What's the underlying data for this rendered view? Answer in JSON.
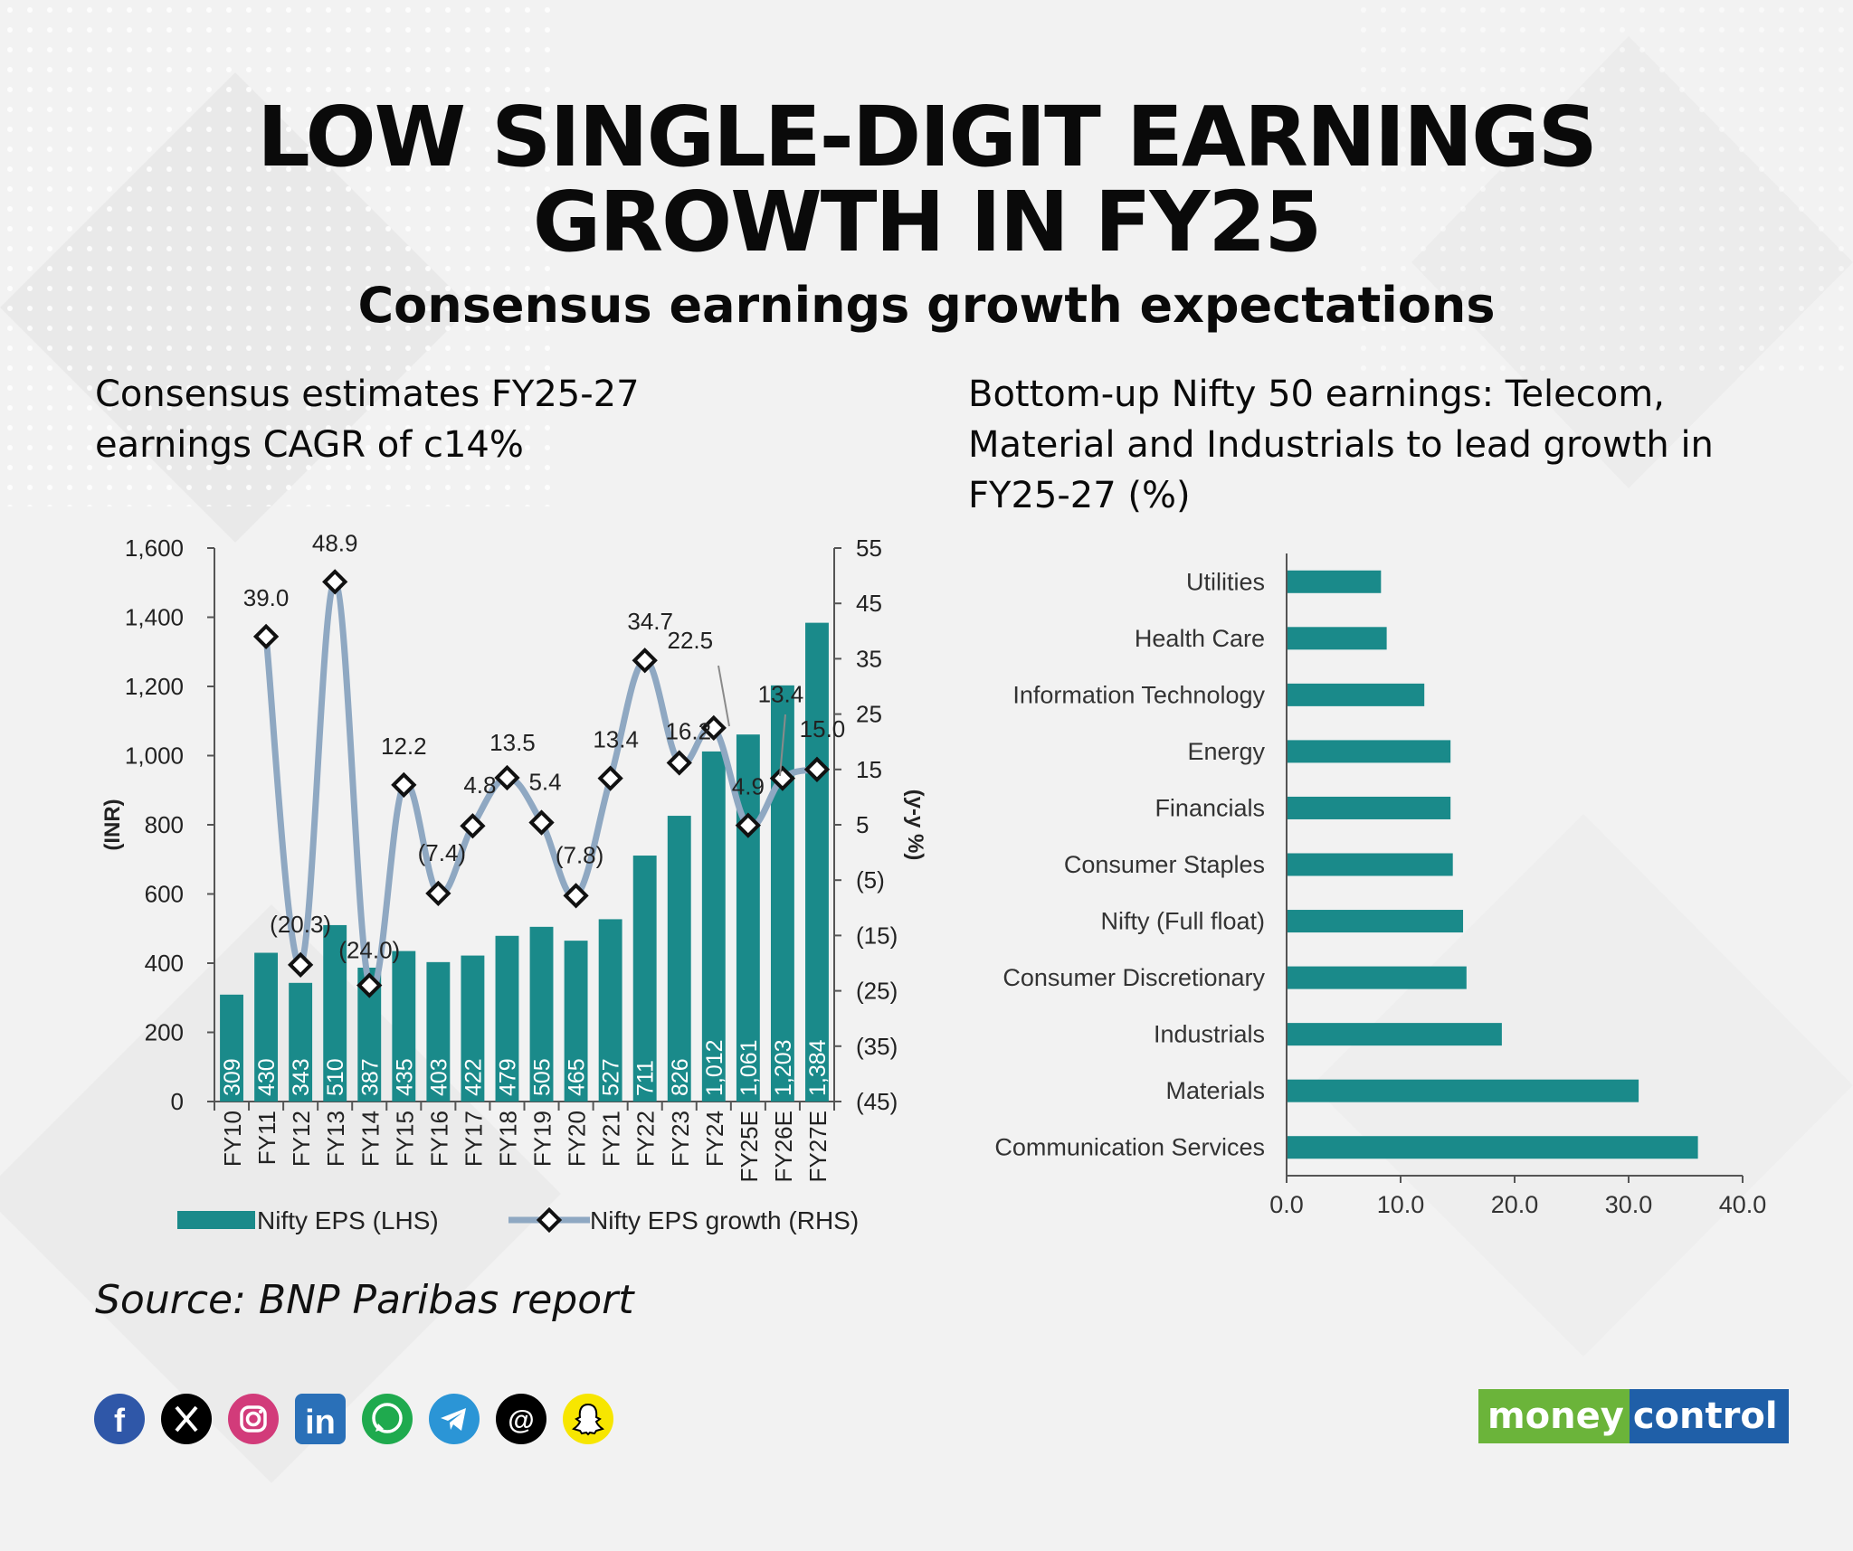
{
  "header": {
    "title_line1": "LOW SINGLE-DIGIT EARNINGS",
    "title_line2": "GROWTH IN FY25",
    "subtitle": "Consensus earnings growth expectations"
  },
  "left_panel": {
    "title": "Consensus estimates FY25-27 earnings CAGR of c14%"
  },
  "right_panel": {
    "title": "Bottom-up Nifty 50 earnings: Telecom, Material and Industrials to lead growth in FY25-27 (%)"
  },
  "source": "Source: BNP Paribas report",
  "social_icons": [
    "facebook-icon",
    "x-icon",
    "instagram-icon",
    "linkedin-icon",
    "whatsapp-icon",
    "telegram-icon",
    "threads-icon",
    "snapchat-icon"
  ],
  "logo": {
    "part1": "money",
    "part2": "control",
    "color1": "#6bb43a",
    "color2": "#1f5fa8"
  },
  "colors": {
    "bar": "#1a8a8a",
    "line": "#8fa8c2",
    "marker_edge": "#111111"
  },
  "chart_data": [
    {
      "type": "bar",
      "categories": [
        "FY10",
        "FY11",
        "FY12",
        "FY13",
        "FY14",
        "FY15",
        "FY16",
        "FY17",
        "FY18",
        "FY19",
        "FY20",
        "FY21",
        "FY22",
        "FY23",
        "FY24",
        "FY25E",
        "FY26E",
        "FY27E"
      ],
      "series": [
        {
          "name": "Nifty EPS (LHS)",
          "axis": "left",
          "type": "bar",
          "values": [
            309,
            430,
            343,
            510,
            387,
            435,
            403,
            422,
            479,
            505,
            465,
            527,
            711,
            826,
            1012,
            1061,
            1203,
            1384
          ],
          "labels": [
            "309",
            "430",
            "343",
            "510",
            "387",
            "435",
            "403",
            "422",
            "479",
            "505",
            "465",
            "527",
            "711",
            "826",
            "1,012",
            "1,061",
            "1,203",
            "1,384"
          ]
        },
        {
          "name": "Nifty EPS growth (RHS)",
          "axis": "right",
          "type": "line",
          "values": [
            null,
            39.0,
            -20.3,
            48.9,
            -24.0,
            12.2,
            -7.4,
            4.8,
            13.5,
            5.4,
            -7.8,
            13.4,
            34.7,
            16.2,
            22.5,
            4.9,
            13.4,
            15.0
          ],
          "labels": [
            "",
            "39.0",
            "(20.3)",
            "48.9",
            "(24.0)",
            "12.2",
            "(7.4)",
            "4.8",
            "13.5",
            "5.4",
            "(7.8)",
            "13.4",
            "34.7",
            "16.2",
            "22.5",
            "4.9",
            "13.4",
            "15.0"
          ]
        }
      ],
      "ylabel": "(INR)",
      "y2label": "(y-y %)",
      "ylim": [
        0,
        1600
      ],
      "y2lim": [
        -45,
        55
      ],
      "yticks": [
        "0",
        "200",
        "400",
        "600",
        "800",
        "1,000",
        "1,200",
        "1,400",
        "1,600"
      ],
      "y2ticks": [
        "(45)",
        "(35)",
        "(25)",
        "(15)",
        "(5)",
        "5",
        "15",
        "25",
        "35",
        "45",
        "55"
      ],
      "legend": "bottom"
    },
    {
      "type": "bar",
      "orientation": "horizontal",
      "categories": [
        "Utilities",
        "Health Care",
        "Information Technology",
        "Energy",
        "Financials",
        "Consumer Staples",
        "Nifty (Full float)",
        "Consumer Discretionary",
        "Industrials",
        "Materials",
        "Communication Services"
      ],
      "values": [
        8.2,
        8.7,
        12.0,
        14.3,
        14.3,
        14.5,
        15.4,
        15.7,
        18.8,
        30.8,
        36.0
      ],
      "xlim": [
        0,
        40
      ],
      "xticks": [
        "0.0",
        "10.0",
        "20.0",
        "30.0",
        "40.0"
      ]
    }
  ]
}
